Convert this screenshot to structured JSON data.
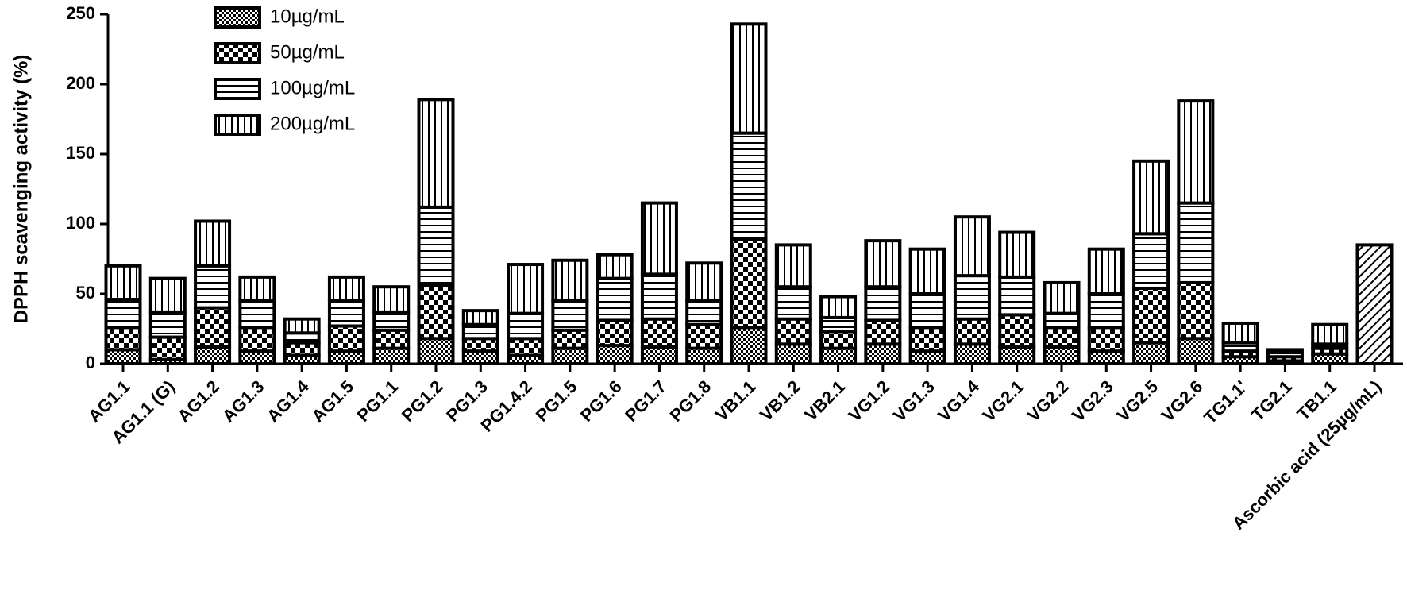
{
  "chart_data": {
    "type": "stacked_bar",
    "y_label": "DPPH scavenging activity (%)",
    "categories": [
      "AG1.1",
      "AG1.1 (G)",
      "AG1.2",
      "AG1.3",
      "AG1.4",
      "AG1.5",
      "PG1.1",
      "PG1.2",
      "PG1.3",
      "PG1.4.2",
      "PG1.5",
      "PG1.6",
      "PG1.7",
      "PG1.8",
      "VB1.1",
      "VB1.2",
      "VB2.1",
      "VG1.2",
      "VG1.3",
      "VG1.4",
      "VG2.1",
      "VG2.2",
      "VG2.3",
      "VG2.5",
      "VG2.6",
      "TG1.1'",
      "TG2.1",
      "TB1.1",
      "Ascorbic acid (25µg/mL)"
    ],
    "series": [
      {
        "name": "10µg/mL",
        "pattern": "fine-check",
        "color": "#000000",
        "values": [
          10,
          3,
          12,
          9,
          6,
          9,
          11,
          18,
          9,
          6,
          11,
          13,
          12,
          11,
          26,
          14,
          11,
          14,
          9,
          14,
          12,
          12,
          9,
          15,
          18,
          5,
          2,
          7,
          null
        ]
      },
      {
        "name": "50µg/mL",
        "pattern": "coarse-check",
        "color": "#000000",
        "values": [
          16,
          16,
          28,
          17,
          9,
          18,
          13,
          38,
          9,
          12,
          13,
          18,
          20,
          17,
          63,
          18,
          12,
          17,
          17,
          18,
          23,
          14,
          17,
          39,
          40,
          4,
          3,
          4,
          null
        ]
      },
      {
        "name": "100µg/mL",
        "pattern": "horizontal",
        "color": "#000000",
        "values": [
          20,
          18,
          30,
          19,
          7,
          18,
          13,
          56,
          10,
          18,
          21,
          30,
          32,
          17,
          76,
          23,
          10,
          24,
          24,
          31,
          27,
          10,
          24,
          39,
          57,
          6,
          3,
          3,
          null
        ]
      },
      {
        "name": "200µg/mL",
        "pattern": "vertical",
        "color": "#000000",
        "values": [
          24,
          24,
          32,
          17,
          10,
          17,
          18,
          77,
          10,
          35,
          29,
          17,
          51,
          27,
          78,
          30,
          15,
          33,
          32,
          42,
          32,
          22,
          32,
          52,
          73,
          14,
          2,
          14,
          null
        ]
      },
      {
        "pattern": "diagonal",
        "color": "#000000",
        "values": [
          null,
          null,
          null,
          null,
          null,
          null,
          null,
          null,
          null,
          null,
          null,
          null,
          null,
          null,
          null,
          null,
          null,
          null,
          null,
          null,
          null,
          null,
          null,
          null,
          null,
          null,
          null,
          null,
          85
        ]
      }
    ],
    "ylim": [
      0,
      250
    ],
    "yticks": [
      0,
      50,
      100,
      150,
      200,
      250
    ],
    "grid": false
  }
}
